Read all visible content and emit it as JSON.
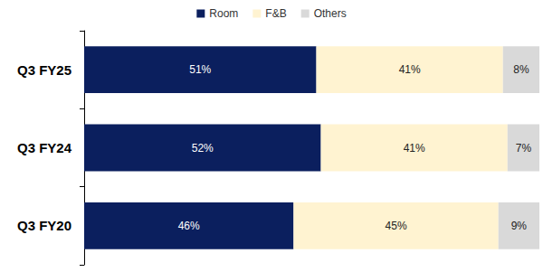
{
  "chart_data": {
    "type": "bar",
    "orientation": "horizontal",
    "stacked": true,
    "data_labels": true,
    "tick_labels": "y",
    "grid": false,
    "legend": "top",
    "categories": [
      "Q3 FY25",
      "Q3 FY24",
      "Q3 FY20"
    ],
    "xlim": [
      0,
      100
    ],
    "series": [
      {
        "name": "Room",
        "color": "#0b1f5e",
        "values": [
          51,
          52,
          46
        ],
        "value_labels": [
          "51%",
          "52%",
          "46%"
        ]
      },
      {
        "name": "F&B",
        "color": "#fff3d1",
        "values": [
          41,
          41,
          45
        ],
        "value_labels": [
          "41%",
          "41%",
          "45%"
        ]
      },
      {
        "name": "Others",
        "color": "#d9d9d9",
        "values": [
          8,
          7,
          9
        ],
        "value_labels": [
          "8%",
          "7%",
          "9%"
        ]
      }
    ]
  }
}
